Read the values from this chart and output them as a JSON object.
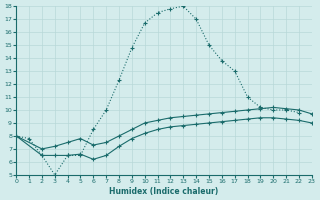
{
  "xlabel": "Humidex (Indice chaleur)",
  "xlim": [
    0,
    23
  ],
  "ylim": [
    5,
    18
  ],
  "xticks": [
    0,
    1,
    2,
    3,
    4,
    5,
    6,
    7,
    8,
    9,
    10,
    11,
    12,
    13,
    14,
    15,
    16,
    17,
    18,
    19,
    20,
    21,
    22,
    23
  ],
  "yticks": [
    5,
    6,
    7,
    8,
    9,
    10,
    11,
    12,
    13,
    14,
    15,
    16,
    17,
    18
  ],
  "background_color": "#d4ecec",
  "line_color": "#1a6b6b",
  "grid_color": "#b8d8d8",
  "line1_x": [
    0,
    1,
    2,
    3,
    4,
    5,
    6,
    7,
    8,
    9,
    10,
    11,
    12,
    13,
    14,
    15,
    16,
    17,
    18,
    19,
    20,
    21,
    22
  ],
  "line1_y": [
    8.0,
    7.8,
    6.5,
    5.0,
    6.5,
    6.5,
    8.5,
    10.0,
    12.3,
    14.8,
    16.7,
    17.5,
    17.8,
    18.0,
    17.0,
    15.0,
    13.8,
    13.0,
    11.0,
    10.2,
    10.0,
    10.0,
    9.8
  ],
  "line2_x": [
    0,
    2,
    3,
    4,
    5,
    6,
    7,
    8,
    9,
    10,
    11,
    12,
    13,
    14,
    15,
    16,
    17,
    18,
    19,
    20,
    21,
    22,
    23
  ],
  "line2_y": [
    8.0,
    7.0,
    7.2,
    7.5,
    7.8,
    7.3,
    7.5,
    8.0,
    8.5,
    9.0,
    9.2,
    9.4,
    9.5,
    9.6,
    9.7,
    9.8,
    9.9,
    10.0,
    10.1,
    10.2,
    10.1,
    10.0,
    9.7
  ],
  "line3_x": [
    0,
    2,
    3,
    4,
    5,
    6,
    7,
    8,
    9,
    10,
    11,
    12,
    13,
    14,
    15,
    16,
    17,
    18,
    19,
    20,
    21,
    22,
    23
  ],
  "line3_y": [
    8.0,
    6.5,
    6.5,
    6.5,
    6.6,
    6.2,
    6.5,
    7.2,
    7.8,
    8.2,
    8.5,
    8.7,
    8.8,
    8.9,
    9.0,
    9.1,
    9.2,
    9.3,
    9.4,
    9.4,
    9.3,
    9.2,
    9.0
  ]
}
